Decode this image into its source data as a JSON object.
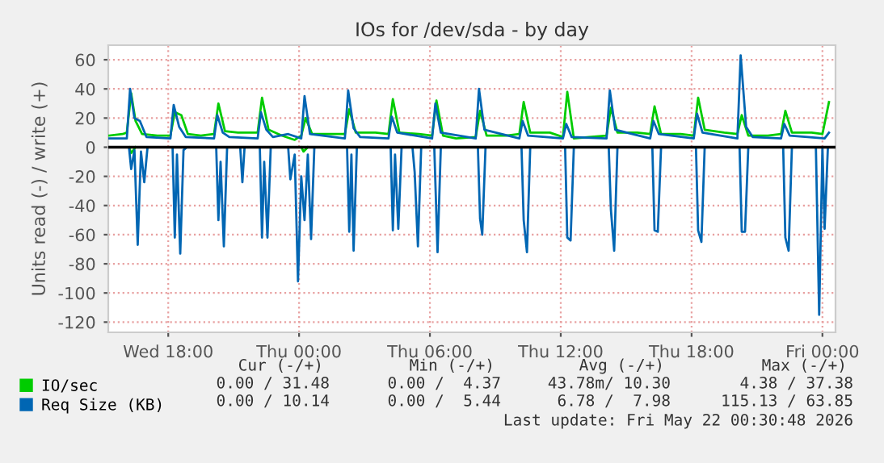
{
  "chart_data": {
    "type": "line",
    "title": "IOs for /dev/sda - by day",
    "ylabel": "Units read (-) / write (+)",
    "xlim": [
      "2026-05-20T15:15",
      "2026-05-22T00:36"
    ],
    "ylim": [
      -127,
      70
    ],
    "xticks": [
      {
        "value": "2026-05-20T18:00",
        "label": "Wed 18:00"
      },
      {
        "value": "2026-05-21T00:00",
        "label": "Thu 00:00"
      },
      {
        "value": "2026-05-21T06:00",
        "label": "Thu 06:00"
      },
      {
        "value": "2026-05-21T12:00",
        "label": "Thu 12:00"
      },
      {
        "value": "2026-05-21T18:00",
        "label": "Thu 18:00"
      },
      {
        "value": "2026-05-22T00:00",
        "label": "Fri 00:00"
      }
    ],
    "yticks": [
      -120,
      -100,
      -80,
      -60,
      -40,
      -20,
      0,
      20,
      40,
      60
    ],
    "grid": true,
    "legend": "bottom",
    "marker": "none",
    "line_style": "solid",
    "ref_lines": [
      {
        "axis": "y",
        "value": 0,
        "color": "#000000"
      }
    ],
    "series": [
      {
        "name": "IO/sec",
        "color": "#00cc00",
        "x": [
          "2026-05-20T15:18",
          "2026-05-20T15:54",
          "2026-05-20T16:06",
          "2026-05-20T16:18",
          "2026-05-20T16:30",
          "2026-05-20T16:48",
          "2026-05-20T17:30",
          "2026-05-20T18:06",
          "2026-05-20T18:18",
          "2026-05-20T18:36",
          "2026-05-20T18:54",
          "2026-05-20T19:30",
          "2026-05-20T20:06",
          "2026-05-20T20:18",
          "2026-05-20T20:36",
          "2026-05-20T21:12",
          "2026-05-20T22:06",
          "2026-05-20T22:18",
          "2026-05-20T22:36",
          "2026-05-20T23:12",
          "2026-05-20T23:48",
          "2026-05-21T00:06",
          "2026-05-21T00:18",
          "2026-05-21T00:36",
          "2026-05-21T01:30",
          "2026-05-21T02:06",
          "2026-05-21T02:18",
          "2026-05-21T02:36",
          "2026-05-21T03:30",
          "2026-05-21T04:06",
          "2026-05-21T04:18",
          "2026-05-21T04:36",
          "2026-05-21T05:30",
          "2026-05-21T06:06",
          "2026-05-21T06:18",
          "2026-05-21T06:36",
          "2026-05-21T07:12",
          "2026-05-21T08:06",
          "2026-05-21T08:18",
          "2026-05-21T08:36",
          "2026-05-21T09:30",
          "2026-05-21T10:06",
          "2026-05-21T10:18",
          "2026-05-21T10:36",
          "2026-05-21T11:30",
          "2026-05-21T12:06",
          "2026-05-21T12:18",
          "2026-05-21T12:36",
          "2026-05-21T13:18",
          "2026-05-21T14:06",
          "2026-05-21T14:18",
          "2026-05-21T14:36",
          "2026-05-21T15:30",
          "2026-05-21T16:06",
          "2026-05-21T16:18",
          "2026-05-21T16:36",
          "2026-05-21T17:30",
          "2026-05-21T18:06",
          "2026-05-21T18:18",
          "2026-05-21T18:36",
          "2026-05-21T19:30",
          "2026-05-21T20:06",
          "2026-05-21T20:18",
          "2026-05-21T20:36",
          "2026-05-21T21:30",
          "2026-05-21T22:06",
          "2026-05-21T22:18",
          "2026-05-21T22:36",
          "2026-05-21T23:30",
          "2026-05-22T00:00",
          "2026-05-22T00:18"
        ],
        "values": [
          8,
          9,
          10,
          37,
          18,
          9,
          8,
          8,
          24,
          22,
          9,
          8,
          9,
          30,
          11,
          10,
          10,
          34,
          12,
          8,
          5,
          8,
          20,
          9,
          9,
          9,
          26,
          10,
          10,
          9,
          33,
          10,
          9,
          8,
          32,
          8,
          6,
          7,
          25,
          8,
          8,
          9,
          31,
          10,
          10,
          7,
          38,
          6,
          7,
          8,
          27,
          10,
          10,
          9,
          28,
          9,
          9,
          8,
          34,
          12,
          10,
          9,
          22,
          8,
          8,
          9,
          25,
          10,
          10,
          9,
          31
        ]
      },
      {
        "color": "#00cc00",
        "x": [
          "2026-05-20T16:12",
          "2026-05-20T16:18",
          "2026-05-20T16:30",
          "2026-05-20T20:00",
          "2026-05-21T00:06",
          "2026-05-21T00:12",
          "2026-05-21T00:24"
        ],
        "values": [
          0,
          -4,
          0,
          null,
          0,
          -3,
          0
        ]
      },
      {
        "name": "Req Size (KB)",
        "color": "#0066b3",
        "x": [
          "2026-05-20T15:18",
          "2026-05-20T16:06",
          "2026-05-20T16:15",
          "2026-05-20T16:27",
          "2026-05-20T16:42",
          "2026-05-20T17:00",
          "2026-05-20T18:06",
          "2026-05-20T18:15",
          "2026-05-20T18:30",
          "2026-05-20T18:48",
          "2026-05-20T20:06",
          "2026-05-20T20:15",
          "2026-05-20T20:30",
          "2026-05-20T20:48",
          "2026-05-20T22:06",
          "2026-05-20T22:15",
          "2026-05-20T22:30",
          "2026-05-20T22:48",
          "2026-05-20T23:30",
          "2026-05-21T00:06",
          "2026-05-21T00:15",
          "2026-05-21T00:30",
          "2026-05-21T02:06",
          "2026-05-21T02:15",
          "2026-05-21T02:30",
          "2026-05-21T02:48",
          "2026-05-21T04:06",
          "2026-05-21T04:15",
          "2026-05-21T04:30",
          "2026-05-21T06:06",
          "2026-05-21T06:15",
          "2026-05-21T06:30",
          "2026-05-21T08:06",
          "2026-05-21T08:15",
          "2026-05-21T08:30",
          "2026-05-21T10:06",
          "2026-05-21T10:15",
          "2026-05-21T10:30",
          "2026-05-21T12:06",
          "2026-05-21T12:15",
          "2026-05-21T12:30",
          "2026-05-21T14:06",
          "2026-05-21T14:15",
          "2026-05-21T14:30",
          "2026-05-21T16:06",
          "2026-05-21T16:15",
          "2026-05-21T16:30",
          "2026-05-21T18:06",
          "2026-05-21T18:15",
          "2026-05-21T18:30",
          "2026-05-21T20:06",
          "2026-05-21T20:15",
          "2026-05-21T20:30",
          "2026-05-21T20:48",
          "2026-05-21T22:06",
          "2026-05-21T22:15",
          "2026-05-21T22:30",
          "2026-05-22T00:06",
          "2026-05-22T00:18"
        ],
        "values": [
          6,
          6,
          40,
          20,
          18,
          7,
          6,
          29,
          14,
          7,
          6,
          22,
          10,
          7,
          6,
          24,
          12,
          7,
          9,
          6,
          35,
          9,
          6,
          39,
          13,
          7,
          6,
          21,
          10,
          6,
          30,
          10,
          6,
          40,
          12,
          6,
          18,
          8,
          6,
          16,
          7,
          6,
          39,
          12,
          6,
          18,
          9,
          6,
          23,
          10,
          6,
          63,
          14,
          7,
          6,
          16,
          8,
          6,
          10
        ]
      },
      {
        "color": "#0066b3",
        "x": [
          "2026-05-20T15:18",
          "2026-05-20T16:12",
          "2026-05-20T16:18",
          "2026-05-20T16:27",
          "2026-05-20T16:36",
          "2026-05-20T16:45",
          "2026-05-20T16:54",
          "2026-05-20T17:03",
          "2026-05-20T18:12",
          "2026-05-20T18:18",
          "2026-05-20T18:24",
          "2026-05-20T18:33",
          "2026-05-20T18:42",
          "2026-05-20T18:51",
          "2026-05-20T20:12",
          "2026-05-20T20:18",
          "2026-05-20T20:24",
          "2026-05-20T20:33",
          "2026-05-20T20:42",
          "2026-05-20T21:18",
          "2026-05-20T21:24",
          "2026-05-20T21:30",
          "2026-05-20T22:12",
          "2026-05-20T22:18",
          "2026-05-20T22:24",
          "2026-05-20T22:33",
          "2026-05-20T22:42",
          "2026-05-20T23:30",
          "2026-05-20T23:36",
          "2026-05-20T23:48",
          "2026-05-20T23:57",
          "2026-05-21T00:06",
          "2026-05-21T00:15",
          "2026-05-21T00:24",
          "2026-05-21T00:33",
          "2026-05-21T00:42",
          "2026-05-21T02:12",
          "2026-05-21T02:18",
          "2026-05-21T02:24",
          "2026-05-21T02:30",
          "2026-05-21T02:39",
          "2026-05-21T04:12",
          "2026-05-21T04:18",
          "2026-05-21T04:24",
          "2026-05-21T04:33",
          "2026-05-21T04:42",
          "2026-05-21T05:12",
          "2026-05-21T05:18",
          "2026-05-21T05:27",
          "2026-05-21T05:36",
          "2026-05-21T06:12",
          "2026-05-21T06:21",
          "2026-05-21T06:30",
          "2026-05-21T08:12",
          "2026-05-21T08:18",
          "2026-05-21T08:24",
          "2026-05-21T08:33",
          "2026-05-21T10:12",
          "2026-05-21T10:18",
          "2026-05-21T10:27",
          "2026-05-21T10:36",
          "2026-05-21T12:12",
          "2026-05-21T12:18",
          "2026-05-21T12:27",
          "2026-05-21T12:36",
          "2026-05-21T14:12",
          "2026-05-21T14:18",
          "2026-05-21T14:27",
          "2026-05-21T14:36",
          "2026-05-21T16:12",
          "2026-05-21T16:18",
          "2026-05-21T16:27",
          "2026-05-21T16:36",
          "2026-05-21T18:12",
          "2026-05-21T18:18",
          "2026-05-21T18:27",
          "2026-05-21T18:36",
          "2026-05-21T20:12",
          "2026-05-21T20:18",
          "2026-05-21T20:27",
          "2026-05-21T20:36",
          "2026-05-21T22:12",
          "2026-05-21T22:18",
          "2026-05-21T22:27",
          "2026-05-21T22:36",
          "2026-05-21T23:42",
          "2026-05-21T23:51",
          "2026-05-22T00:00",
          "2026-05-22T00:06",
          "2026-05-22T00:15"
        ],
        "values": [
          0,
          0,
          -15,
          -2,
          -67,
          -3,
          -24,
          0,
          0,
          -62,
          -5,
          -73,
          -2,
          0,
          0,
          -50,
          -10,
          -68,
          0,
          0,
          -24,
          0,
          0,
          -62,
          -10,
          -62,
          0,
          0,
          -22,
          -5,
          -92,
          -20,
          -50,
          -5,
          -63,
          0,
          0,
          -58,
          -5,
          -71,
          0,
          0,
          -57,
          -5,
          -56,
          0,
          0,
          -17,
          -68,
          0,
          0,
          -72,
          0,
          0,
          -49,
          -60,
          0,
          0,
          -50,
          -72,
          0,
          0,
          -62,
          -64,
          0,
          0,
          -43,
          -71,
          0,
          0,
          -57,
          -58,
          0,
          0,
          -57,
          -65,
          0,
          0,
          -58,
          -58,
          0,
          0,
          -62,
          -71,
          0,
          0,
          -115,
          0,
          -56,
          0
        ]
      }
    ],
    "annotations": [
      "Cur (-/+)",
      "Min (-/+)",
      "Avg (-/+)",
      "Max (-/+)",
      "0.00 / 31.48",
      "0.00 /  4.37",
      "43.78m/ 10.30",
      "4.38 / 37.38",
      "0.00 / 10.14",
      "0.00 /  5.44",
      "6.78 /  7.98",
      "115.13 / 63.85",
      "Last update: Fri May 22 00:30:48 2026"
    ]
  }
}
